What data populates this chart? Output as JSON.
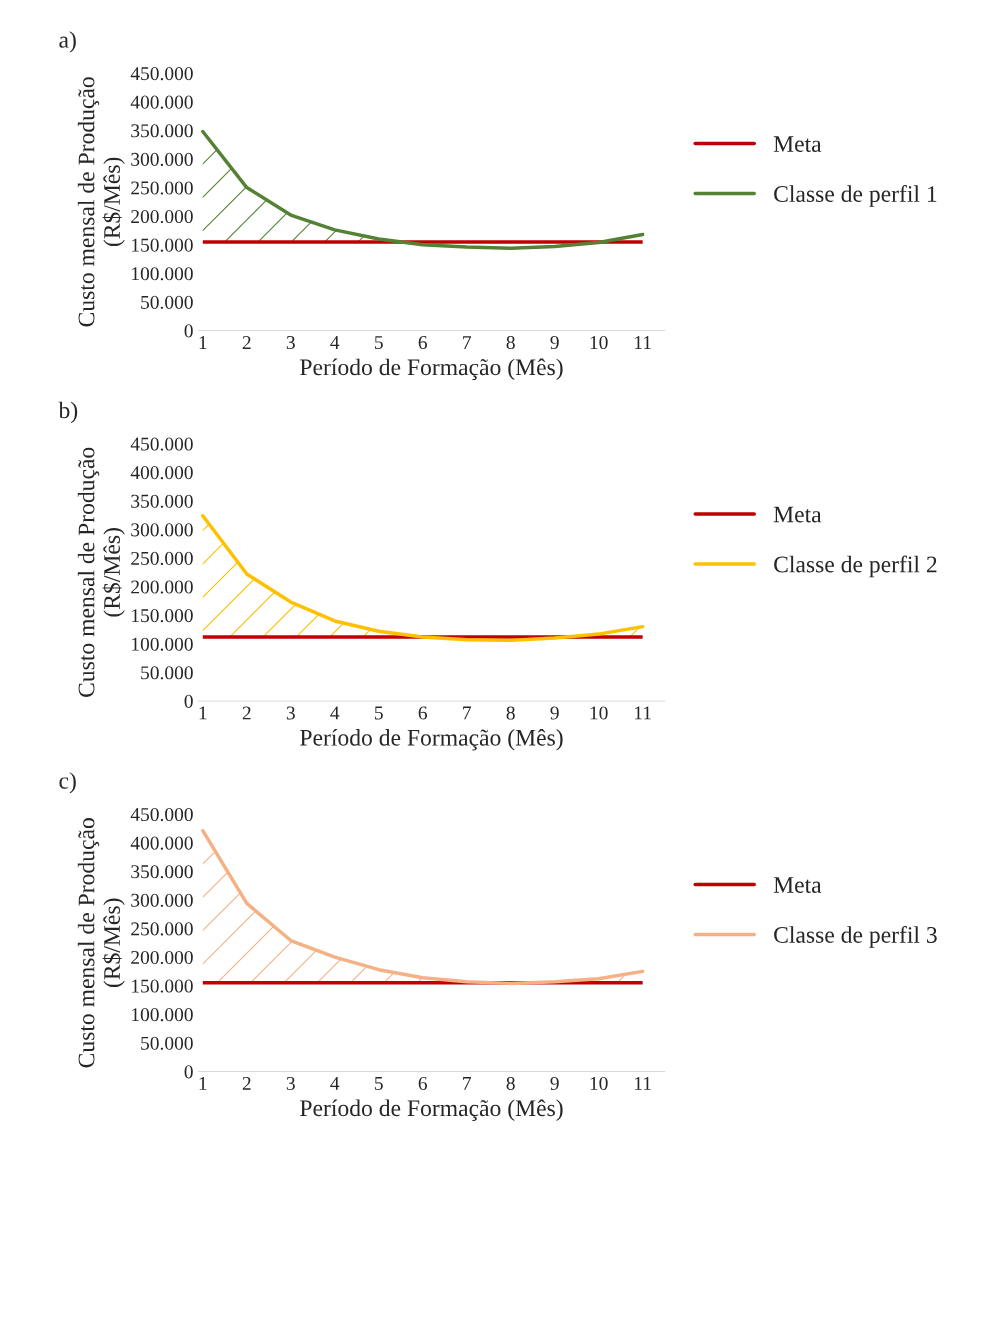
{
  "chart_data": [
    {
      "type": "line",
      "annotations": [
        "a)"
      ],
      "xlabel": "Período de Formação (Mês)",
      "ylabel": "Custo mensal de Produção\n(R$/Mês)",
      "categories": [
        "1",
        "2",
        "3",
        "4",
        "5",
        "6",
        "7",
        "8",
        "9",
        "10",
        "11"
      ],
      "series": [
        {
          "name": "Classe de perfil 1",
          "color": "#548235",
          "values": [
            348000,
            250000,
            202000,
            176000,
            160000,
            150000,
            146000,
            144000,
            147000,
            154000,
            168000
          ],
          "lower": [
            155000,
            155000,
            155000,
            155000,
            155000,
            null,
            null,
            null,
            null,
            null,
            null
          ],
          "upper": [
            348000,
            250000,
            202000,
            176000,
            160000,
            null,
            null,
            null,
            null,
            null,
            null
          ]
        }
      ],
      "ref_lines": [
        {
          "axis": "y",
          "value": 155000,
          "label": "Meta",
          "color": "#c00000"
        }
      ],
      "ylim": [
        0,
        450000
      ],
      "yticks": [
        0,
        {
          "value": 50000,
          "label": "50.000"
        },
        {
          "value": 100000,
          "label": "100.000"
        },
        {
          "value": 150000,
          "label": "150.000"
        },
        {
          "value": 200000,
          "label": "200.000"
        },
        {
          "value": 250000,
          "label": "250.000"
        },
        {
          "value": 300000,
          "label": "300.000"
        },
        {
          "value": 350000,
          "label": "350.000"
        },
        {
          "value": 400000,
          "label": "400.000"
        },
        {
          "value": 450000,
          "label": "450.000"
        }
      ],
      "legend": "right"
    },
    {
      "type": "line",
      "annotations": [
        "b)"
      ],
      "xlabel": "Período de Formação (Mês)",
      "ylabel": "Custo mensal de Produção\n(R$/Mês)",
      "categories": [
        "1",
        "2",
        "3",
        "4",
        "5",
        "6",
        "7",
        "8",
        "9",
        "10",
        "11"
      ],
      "series": [
        {
          "name": "Classe de perfil 2",
          "color": "#ffc000",
          "values": [
            324000,
            222000,
            173000,
            140000,
            122000,
            112000,
            107000,
            106000,
            110000,
            117000,
            130000
          ],
          "lower": [
            112000,
            112000,
            112000,
            112000,
            112000,
            112000,
            null,
            null,
            null,
            112000,
            112000
          ],
          "upper": [
            324000,
            222000,
            173000,
            140000,
            122000,
            112000,
            null,
            null,
            null,
            117000,
            130000
          ]
        }
      ],
      "ref_lines": [
        {
          "axis": "y",
          "value": 112000,
          "label": "Meta",
          "color": "#c00000"
        }
      ],
      "ylim": [
        0,
        450000
      ],
      "yticks": [
        0,
        {
          "value": 50000,
          "label": "50.000"
        },
        {
          "value": 100000,
          "label": "100.000"
        },
        {
          "value": 150000,
          "label": "150.000"
        },
        {
          "value": 200000,
          "label": "200.000"
        },
        {
          "value": 250000,
          "label": "250.000"
        },
        {
          "value": 300000,
          "label": "300.000"
        },
        {
          "value": 350000,
          "label": "350.000"
        },
        {
          "value": 400000,
          "label": "400.000"
        },
        {
          "value": 450000,
          "label": "450.000"
        }
      ],
      "legend": "right"
    },
    {
      "type": "line",
      "annotations": [
        "c)"
      ],
      "xlabel": "Período de Formação (Mês)",
      "ylabel": "Custo mensal de Produção\n(R$/Mês)",
      "categories": [
        "1",
        "2",
        "3",
        "4",
        "5",
        "6",
        "7",
        "8",
        "9",
        "10",
        "11"
      ],
      "series": [
        {
          "name": "Classe de perfil 3",
          "color": "#f4b183",
          "values": [
            421000,
            294000,
            229000,
            200000,
            178000,
            164000,
            157000,
            154000,
            157000,
            162000,
            175000
          ],
          "lower": [
            155000,
            155000,
            155000,
            155000,
            155000,
            155000,
            155000,
            null,
            155000,
            155000,
            155000
          ],
          "upper": [
            421000,
            294000,
            229000,
            200000,
            178000,
            164000,
            157000,
            null,
            157000,
            162000,
            175000
          ]
        }
      ],
      "ref_lines": [
        {
          "axis": "y",
          "value": 155000,
          "label": "Meta",
          "color": "#c00000"
        }
      ],
      "ylim": [
        0,
        450000
      ],
      "yticks": [
        0,
        {
          "value": 50000,
          "label": "50.000"
        },
        {
          "value": 100000,
          "label": "100.000"
        },
        {
          "value": 150000,
          "label": "150.000"
        },
        {
          "value": 200000,
          "label": "200.000"
        },
        {
          "value": 250000,
          "label": "250.000"
        },
        {
          "value": 300000,
          "label": "300.000"
        },
        {
          "value": 350000,
          "label": "350.000"
        },
        {
          "value": 400000,
          "label": "400.000"
        },
        {
          "value": 450000,
          "label": "450.000"
        }
      ],
      "legend": "right"
    }
  ]
}
